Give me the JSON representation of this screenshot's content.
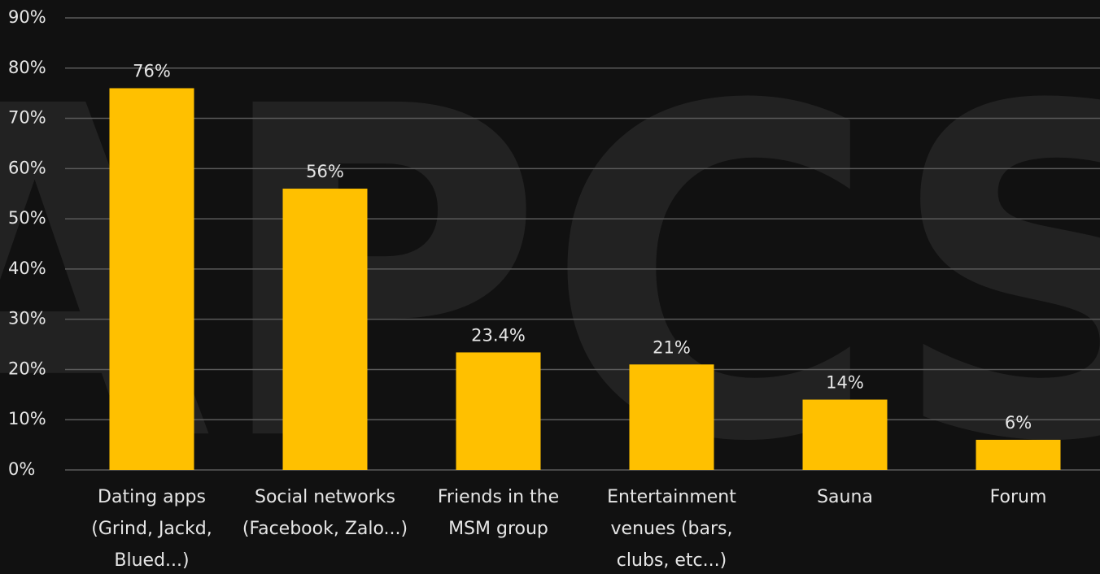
{
  "chart_data": {
    "type": "bar",
    "watermark": "APCS",
    "categories": [
      "Dating apps (Grind, Jackd, Blued...)",
      "Social networks (Facebook, Zalo...)",
      "Friends in the MSM group",
      "Entertainment venues (bars, clubs, etc...)",
      "Sauna",
      "Forum"
    ],
    "values": [
      76,
      56,
      23.4,
      21,
      14,
      6
    ],
    "value_labels": [
      "76%",
      "56%",
      "23.4%",
      "21%",
      "14%",
      "6%"
    ],
    "color": "#ffc000",
    "ylim": [
      0,
      90
    ],
    "yticks": [
      {
        "value": 0,
        "label": "0%"
      },
      {
        "value": 10,
        "label": "10%"
      },
      {
        "value": 20,
        "label": "20%"
      },
      {
        "value": 30,
        "label": "30%"
      },
      {
        "value": 40,
        "label": "40%"
      },
      {
        "value": 50,
        "label": "50%"
      },
      {
        "value": 60,
        "label": "60%"
      },
      {
        "value": 70,
        "label": "70%"
      },
      {
        "value": 80,
        "label": "80%"
      },
      {
        "value": 90,
        "label": "90%"
      }
    ],
    "grid": true
  }
}
